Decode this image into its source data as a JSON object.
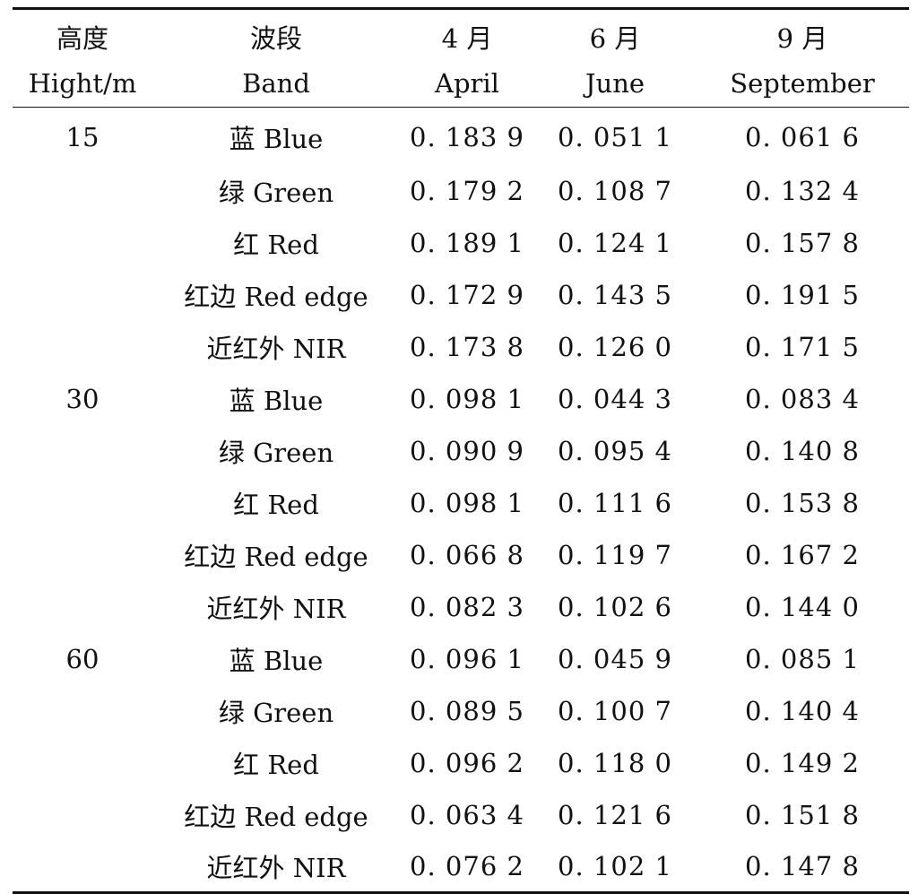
{
  "table": {
    "headers_zh": [
      "高度",
      "波段",
      "4 月",
      "6 月",
      "9 月"
    ],
    "headers_en": [
      "Hight/m",
      "Band",
      "April",
      "June",
      "September"
    ],
    "rows": [
      {
        "height": "15",
        "band": "蓝 Blue",
        "april": "0. 183 9",
        "june": "0. 051 1",
        "september": "0. 061 6"
      },
      {
        "height": "",
        "band": "绿 Green",
        "april": "0. 179 2",
        "june": "0. 108 7",
        "september": "0. 132 4"
      },
      {
        "height": "",
        "band": "红 Red",
        "april": "0. 189 1",
        "june": "0. 124 1",
        "september": "0. 157 8"
      },
      {
        "height": "",
        "band": "红边 Red edge",
        "april": "0. 172 9",
        "june": "0. 143 5",
        "september": "0. 191 5"
      },
      {
        "height": "",
        "band": "近红外 NIR",
        "april": "0. 173 8",
        "june": "0. 126 0",
        "september": "0. 171 5"
      },
      {
        "height": "30",
        "band": "蓝 Blue",
        "april": "0. 098 1",
        "june": "0. 044 3",
        "september": "0. 083 4"
      },
      {
        "height": "",
        "band": "绿 Green",
        "april": "0. 090 9",
        "june": "0. 095 4",
        "september": "0. 140 8"
      },
      {
        "height": "",
        "band": "红 Red",
        "april": "0. 098 1",
        "june": "0. 111 6",
        "september": "0. 153 8"
      },
      {
        "height": "",
        "band": "红边 Red edge",
        "april": "0. 066 8",
        "june": "0. 119 7",
        "september": "0. 167 2"
      },
      {
        "height": "",
        "band": "近红外 NIR",
        "april": "0. 082 3",
        "june": "0. 102 6",
        "september": "0. 144 0"
      },
      {
        "height": "60",
        "band": "蓝 Blue",
        "april": "0. 096 1",
        "june": "0. 045 9",
        "september": "0. 085 1"
      },
      {
        "height": "",
        "band": "绿 Green",
        "april": "0. 089 5",
        "june": "0. 100 7",
        "september": "0. 140 4"
      },
      {
        "height": "",
        "band": "红 Red",
        "april": "0. 096 2",
        "june": "0. 118 0",
        "september": "0. 149 2"
      },
      {
        "height": "",
        "band": "红边 Red edge",
        "april": "0. 063 4",
        "june": "0. 121 6",
        "september": "0. 151 8"
      },
      {
        "height": "",
        "band": "近红外 NIR",
        "april": "0. 076 2",
        "june": "0. 102 1",
        "september": "0. 147 8"
      }
    ]
  }
}
